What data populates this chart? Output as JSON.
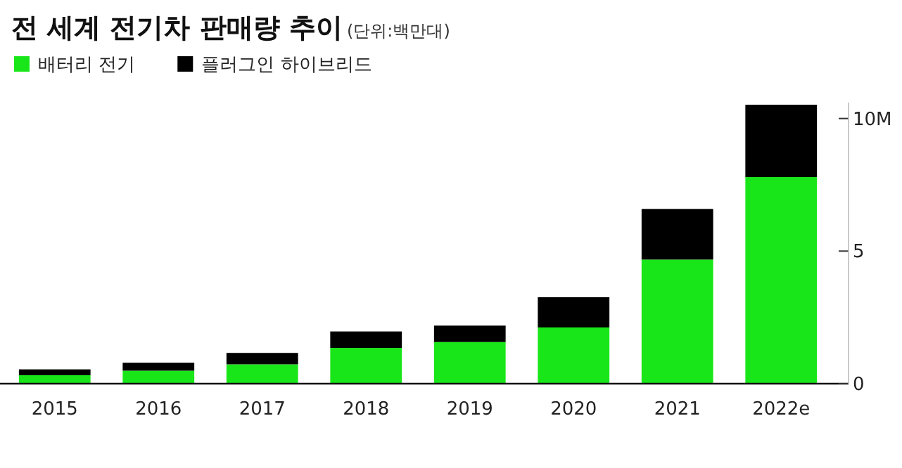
{
  "chart_data": {
    "type": "bar",
    "title": "전 세계 전기차 판매량 추이",
    "subtitle": "(단위:백만대)",
    "stacked": true,
    "legend": "top left",
    "grid": false,
    "categories": [
      "2015",
      "2016",
      "2017",
      "2018",
      "2019",
      "2020",
      "2021",
      "2022e"
    ],
    "series": [
      {
        "name": "배터리 전기",
        "color": "#19e619",
        "values": [
          0.32,
          0.49,
          0.73,
          1.35,
          1.57,
          2.12,
          4.68,
          7.79
        ]
      },
      {
        "name": "플러그인 하이브리드",
        "color": "#000000",
        "values": [
          0.22,
          0.3,
          0.43,
          0.62,
          0.62,
          1.14,
          1.91,
          2.73
        ]
      }
    ],
    "ylim": [
      0,
      10.6
    ],
    "yticks": [
      0,
      5,
      {
        "value": 10,
        "label": "10M"
      }
    ]
  }
}
